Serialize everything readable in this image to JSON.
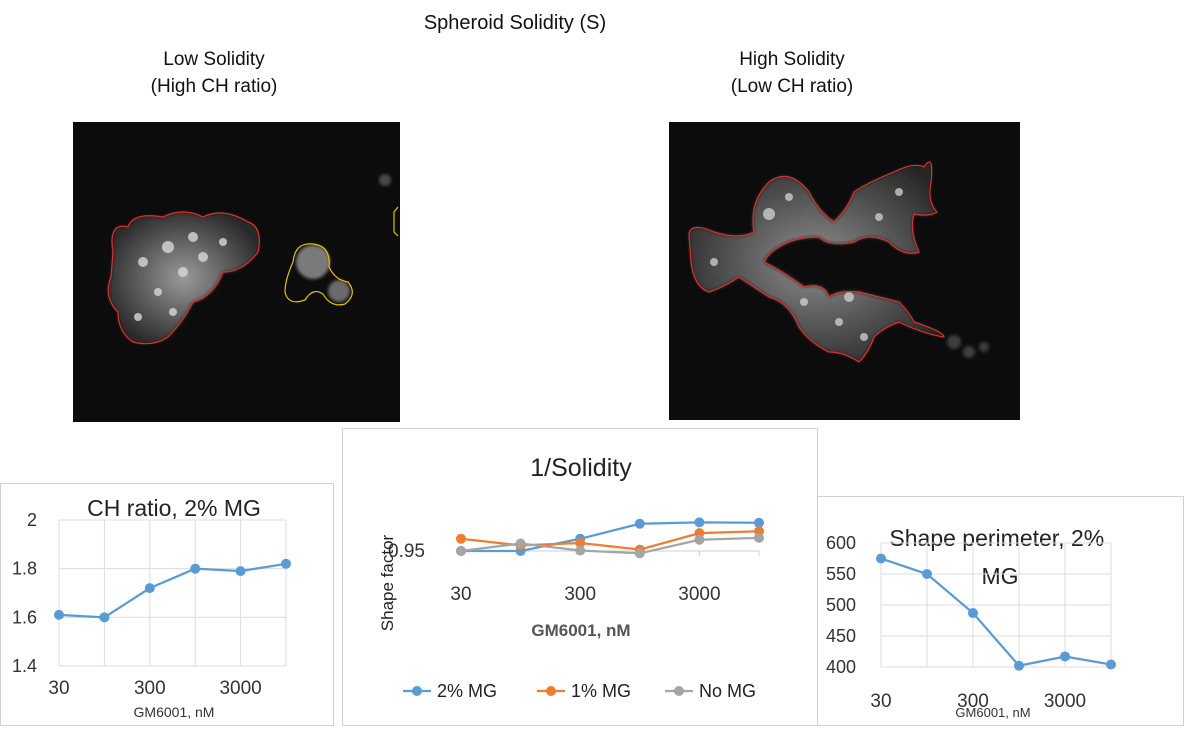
{
  "figure": {
    "title": "Spheroid Solidity (S)",
    "left_panel": {
      "line1": "Low Solidity",
      "line2": "(High CH ratio)"
    },
    "right_panel": {
      "line1": "High Solidity",
      "line2": "(Low CH ratio)"
    },
    "colors": {
      "outline_red": "#e0302a",
      "outline_yellow": "#e6c200",
      "background": "#0c0c0c"
    }
  },
  "chart_data": [
    {
      "id": "ch_ratio",
      "type": "line",
      "title": "CH ratio, 2% MG",
      "xlabel": "GM6001, nM",
      "ylabel": "",
      "x_tick_labels": [
        "30",
        "300",
        "3000"
      ],
      "y_tick_labels": [
        "1.4",
        "1.6",
        "1.8",
        "2"
      ],
      "ylim": [
        1.4,
        2.0
      ],
      "grid": true,
      "series": [
        {
          "name": "",
          "color": "#5b9bd5",
          "values": [
            1.61,
            1.6,
            1.72,
            1.8,
            1.79,
            1.82
          ]
        }
      ]
    },
    {
      "id": "inv_solidity",
      "type": "line",
      "title": "1/Solidity",
      "xlabel": "GM6001, nM",
      "ylabel": "Shape factor",
      "x_tick_labels": [
        "30",
        "300",
        "3000"
      ],
      "y_tick_labels": [
        "0.95"
      ],
      "ylim": [
        0.95,
        1.05
      ],
      "grid": false,
      "legend": "bottom",
      "series": [
        {
          "name": "2% MG",
          "color": "#5b9bd5",
          "values": [
            0.95,
            0.95,
            0.976,
            1.008,
            1.011,
            1.01
          ]
        },
        {
          "name": "1% MG",
          "color": "#ed7d31",
          "values": [
            0.976,
            0.962,
            0.967,
            0.953,
            0.988,
            0.992
          ]
        },
        {
          "name": "No MG",
          "color": "#a5a5a5",
          "values": [
            0.95,
            0.966,
            0.951,
            0.945,
            0.974,
            0.978
          ]
        }
      ]
    },
    {
      "id": "shape_perimeter",
      "type": "line",
      "title": "Shape perimeter, 2% MG",
      "xlabel": "GM6001, nM",
      "ylabel": "",
      "x_tick_labels": [
        "30",
        "300",
        "3000"
      ],
      "y_tick_labels": [
        "400",
        "450",
        "500",
        "550",
        "600"
      ],
      "ylim": [
        400,
        600
      ],
      "grid": true,
      "series": [
        {
          "name": "",
          "color": "#5b9bd5",
          "values": [
            575,
            550,
            487,
            402,
            417,
            404
          ]
        }
      ]
    }
  ]
}
